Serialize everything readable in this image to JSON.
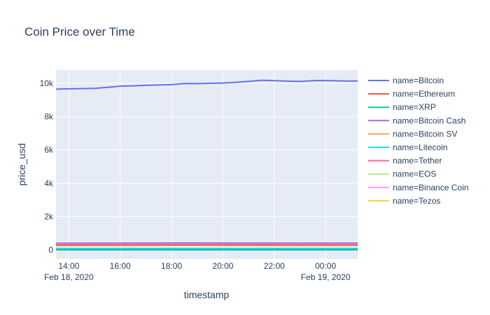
{
  "chart_data": {
    "type": "line",
    "title": "Coin Price over Time",
    "xlabel": "timestamp",
    "ylabel": "price_usd",
    "x_range": [
      "2020-02-18 13:30",
      "2020-02-19 01:15"
    ],
    "ylim": [
      -550,
      10800
    ],
    "x_ticks": [
      {
        "t": "2020-02-18 14:00",
        "label": "14:00",
        "sublabel": "Feb 18, 2020"
      },
      {
        "t": "2020-02-18 16:00",
        "label": "16:00",
        "sublabel": ""
      },
      {
        "t": "2020-02-18 18:00",
        "label": "18:00",
        "sublabel": ""
      },
      {
        "t": "2020-02-18 20:00",
        "label": "20:00",
        "sublabel": ""
      },
      {
        "t": "2020-02-18 22:00",
        "label": "22:00",
        "sublabel": ""
      },
      {
        "t": "2020-02-19 00:00",
        "label": "00:00",
        "sublabel": "Feb 19, 2020"
      }
    ],
    "y_ticks": [
      {
        "v": 0,
        "label": "0"
      },
      {
        "v": 2000,
        "label": "2k"
      },
      {
        "v": 4000,
        "label": "4k"
      },
      {
        "v": 6000,
        "label": "6k"
      },
      {
        "v": 8000,
        "label": "8k"
      },
      {
        "v": 10000,
        "label": "10k"
      }
    ],
    "grid": true,
    "legend_position": "right",
    "series": [
      {
        "name": "name=Bitcoin",
        "color": "#636efa",
        "x": [
          "2020-02-18 13:30",
          "2020-02-18 14:00",
          "2020-02-18 14:30",
          "2020-02-18 15:00",
          "2020-02-18 15:30",
          "2020-02-18 16:00",
          "2020-02-18 16:30",
          "2020-02-18 17:00",
          "2020-02-18 17:30",
          "2020-02-18 18:00",
          "2020-02-18 18:30",
          "2020-02-18 19:00",
          "2020-02-18 19:30",
          "2020-02-18 20:00",
          "2020-02-18 20:30",
          "2020-02-18 21:00",
          "2020-02-18 21:30",
          "2020-02-18 22:00",
          "2020-02-18 22:30",
          "2020-02-18 23:00",
          "2020-02-18 23:30",
          "2020-02-19 00:00",
          "2020-02-19 00:30",
          "2020-02-19 01:00",
          "2020-02-19 01:15"
        ],
        "y": [
          9650,
          9670,
          9680,
          9700,
          9760,
          9830,
          9850,
          9880,
          9900,
          9920,
          9990,
          9980,
          10000,
          10020,
          10060,
          10120,
          10180,
          10160,
          10130,
          10110,
          10160,
          10170,
          10150,
          10130,
          10150
        ]
      },
      {
        "name": "name=Ethereum",
        "color": "#EF553B",
        "x": [
          "2020-02-18 13:30",
          "2020-02-18 16:00",
          "2020-02-18 19:00",
          "2020-02-18 22:00",
          "2020-02-19 01:15"
        ],
        "y": [
          275,
          282,
          285,
          283,
          284
        ]
      },
      {
        "name": "name=XRP",
        "color": "#00cc96",
        "x": [
          "2020-02-18 13:30",
          "2020-02-19 01:15"
        ],
        "y": [
          0.3,
          0.3
        ]
      },
      {
        "name": "name=Bitcoin Cash",
        "color": "#ab63fa",
        "x": [
          "2020-02-18 13:30",
          "2020-02-18 16:00",
          "2020-02-18 19:00",
          "2020-02-18 22:00",
          "2020-02-19 01:15"
        ],
        "y": [
          400,
          405,
          412,
          410,
          408
        ]
      },
      {
        "name": "name=Bitcoin SV",
        "color": "#FFA15A",
        "x": [
          "2020-02-18 13:30",
          "2020-02-18 16:00",
          "2020-02-18 19:00",
          "2020-02-18 22:00",
          "2020-02-19 01:15"
        ],
        "y": [
          320,
          325,
          330,
          327,
          326
        ]
      },
      {
        "name": "name=Litecoin",
        "color": "#19d3f3",
        "x": [
          "2020-02-18 13:30",
          "2020-02-19 01:15"
        ],
        "y": [
          78,
          80
        ]
      },
      {
        "name": "name=Tether",
        "color": "#FF6692",
        "x": [
          "2020-02-18 13:30",
          "2020-02-19 01:15"
        ],
        "y": [
          1,
          1
        ]
      },
      {
        "name": "name=EOS",
        "color": "#B6E880",
        "x": [
          "2020-02-18 13:30",
          "2020-02-19 01:15"
        ],
        "y": [
          4,
          4
        ]
      },
      {
        "name": "name=Binance Coin",
        "color": "#FF97FF",
        "x": [
          "2020-02-18 13:30",
          "2020-02-19 01:15"
        ],
        "y": [
          27,
          27
        ]
      },
      {
        "name": "name=Tezos",
        "color": "#FECB52",
        "x": [
          "2020-02-18 13:30",
          "2020-02-19 01:15"
        ],
        "y": [
          3,
          3
        ]
      }
    ]
  }
}
